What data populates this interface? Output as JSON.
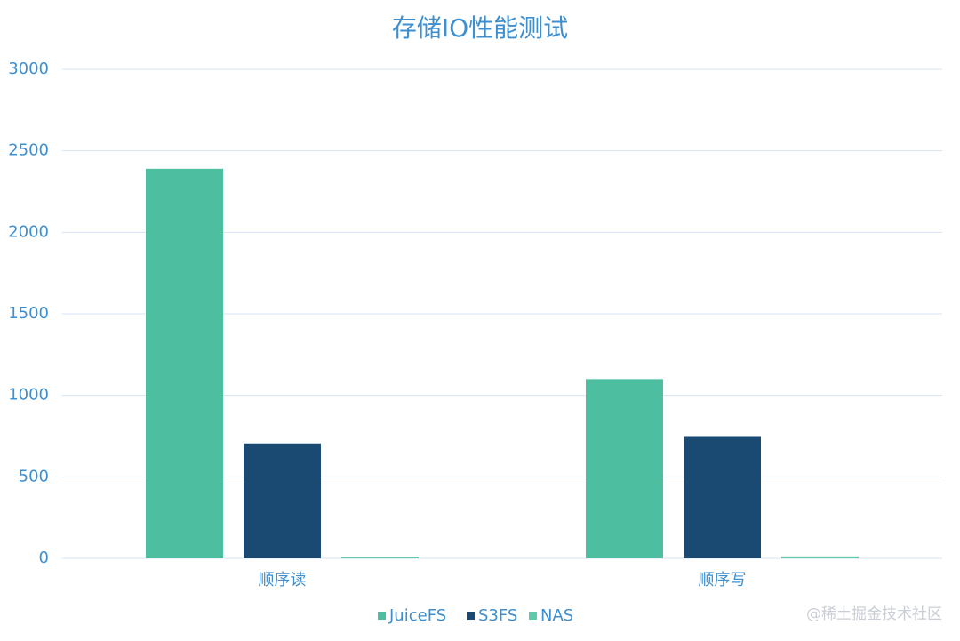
{
  "chart_data": {
    "type": "bar",
    "title": "存储IO性能测试",
    "categories": [
      "顺序读",
      "顺序写"
    ],
    "series": [
      {
        "name": "JuiceFS",
        "color": "#4dbfa0",
        "values": [
          2390,
          1100
        ]
      },
      {
        "name": "S3FS",
        "color": "#1a4a72",
        "values": [
          705,
          750
        ]
      },
      {
        "name": "NAS",
        "color": "#5ccaa9",
        "values": [
          10,
          12
        ]
      }
    ],
    "ylim": [
      0,
      3000
    ],
    "yticks": [
      0,
      500,
      1000,
      1500,
      2000,
      2500,
      3000
    ],
    "grid": true,
    "legend": "bottom",
    "watermark": "@稀土掘金技术社区"
  }
}
